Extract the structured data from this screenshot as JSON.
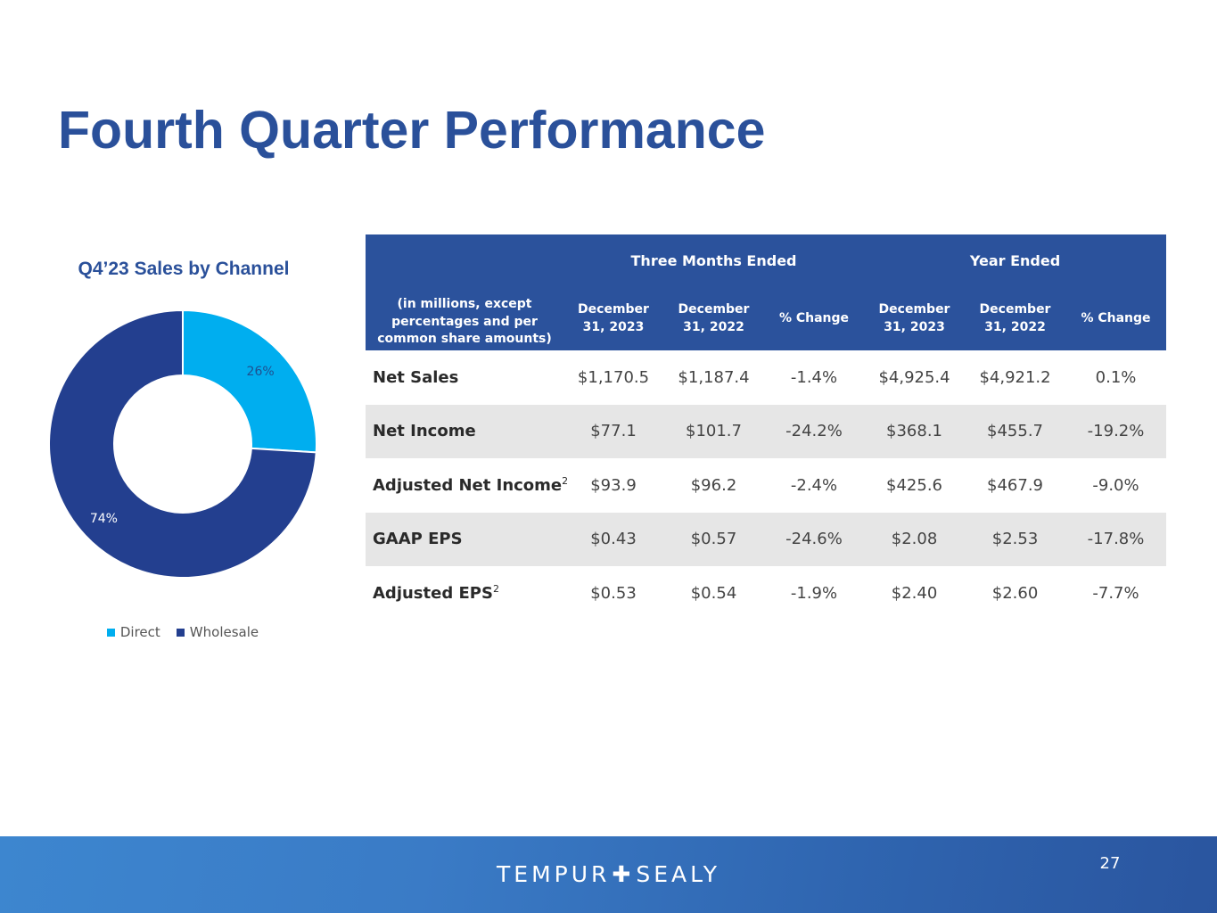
{
  "slide": {
    "title": "Fourth Quarter Performance",
    "page_number": "27"
  },
  "brand": {
    "logo_left": "TEMPUR",
    "logo_plus": "✚",
    "logo_right": "SEALY"
  },
  "colors": {
    "title": "#2a509a",
    "header_bg": "#2b529c",
    "row_stripe": "#e6e6e6",
    "direct": "#00aeef",
    "wholesale": "#233f8f"
  },
  "chart_data": {
    "type": "pie",
    "variant": "donut",
    "title": "Q4’23 Sales by Channel",
    "categories": [
      "Direct",
      "Wholesale"
    ],
    "values": [
      26,
      74
    ],
    "labels": [
      "26%",
      "74%"
    ],
    "colors": [
      "#00aeef",
      "#233f8f"
    ],
    "legend": "bottom"
  },
  "table": {
    "group_headers": [
      "Three Months Ended",
      "Year Ended"
    ],
    "row_header": "(in millions, except percentages and per common share amounts)",
    "columns": [
      "December 31, 2023",
      "December 31, 2022",
      "% Change",
      "December 31, 2023",
      "December 31, 2022",
      "% Change"
    ],
    "rows": [
      {
        "label": "Net Sales",
        "footnote": "",
        "values": [
          "$1,170.5",
          "$1,187.4",
          "-1.4%",
          "$4,925.4",
          "$4,921.2",
          "0.1%"
        ]
      },
      {
        "label": "Net Income",
        "footnote": "",
        "values": [
          "$77.1",
          "$101.7",
          "-24.2%",
          "$368.1",
          "$455.7",
          "-19.2%"
        ]
      },
      {
        "label": "Adjusted Net Income",
        "footnote": "2",
        "values": [
          "$93.9",
          "$96.2",
          "-2.4%",
          "$425.6",
          "$467.9",
          "-9.0%"
        ]
      },
      {
        "label": "GAAP EPS",
        "footnote": "",
        "values": [
          "$0.43",
          "$0.57",
          "-24.6%",
          "$2.08",
          "$2.53",
          "-17.8%"
        ]
      },
      {
        "label": "Adjusted EPS",
        "footnote": "2",
        "values": [
          "$0.53",
          "$0.54",
          "-1.9%",
          "$2.40",
          "$2.60",
          "-7.7%"
        ]
      }
    ]
  }
}
